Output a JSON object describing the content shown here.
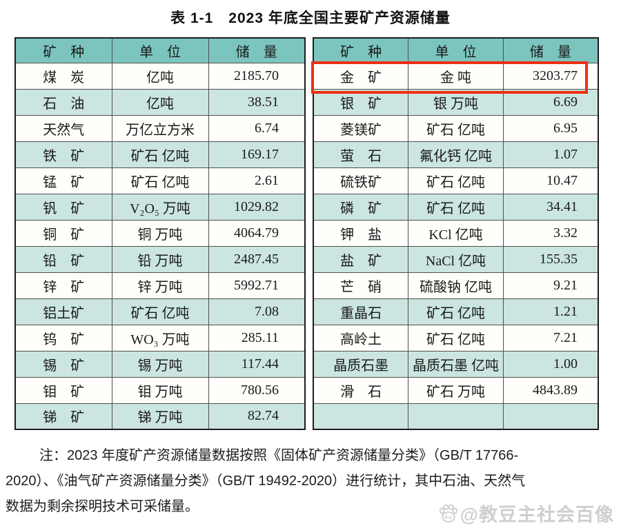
{
  "title": "表 1-1　2023 年底全国主要矿产资源储量",
  "tables": {
    "left": {
      "headers": [
        "矿　种",
        "单　位",
        "储　量"
      ],
      "rows": [
        {
          "mineral": "煤　炭",
          "unit": "亿吨",
          "reserve": "2185.70"
        },
        {
          "mineral": "石　油",
          "unit": "亿吨",
          "reserve": "38.51"
        },
        {
          "mineral": "天然气",
          "unit": "万亿立方米",
          "reserve": "6.74"
        },
        {
          "mineral": "铁　矿",
          "unit": "矿石 亿吨",
          "reserve": "169.17"
        },
        {
          "mineral": "锰　矿",
          "unit": "矿石 亿吨",
          "reserve": "2.61"
        },
        {
          "mineral": "钒　矿",
          "unit": "V₂O₅ 万吨",
          "reserve": "1029.82"
        },
        {
          "mineral": "铜　矿",
          "unit": "铜 万吨",
          "reserve": "4064.79"
        },
        {
          "mineral": "铅　矿",
          "unit": "铅 万吨",
          "reserve": "2487.45"
        },
        {
          "mineral": "锌　矿",
          "unit": "锌 万吨",
          "reserve": "5992.71"
        },
        {
          "mineral": "铝土矿",
          "unit": "矿石 亿吨",
          "reserve": "7.08"
        },
        {
          "mineral": "钨　矿",
          "unit": "WO₃ 万吨",
          "reserve": "285.11"
        },
        {
          "mineral": "锡　矿",
          "unit": "锡 万吨",
          "reserve": "117.44"
        },
        {
          "mineral": "钼　矿",
          "unit": "钼 万吨",
          "reserve": "780.56"
        },
        {
          "mineral": "锑　矿",
          "unit": "锑 万吨",
          "reserve": "82.74"
        }
      ]
    },
    "right": {
      "headers": [
        "矿　种",
        "单　位",
        "储　量"
      ],
      "highlight_row_index": 0,
      "rows": [
        {
          "mineral": "金　矿",
          "unit": "金 吨",
          "reserve": "3203.77"
        },
        {
          "mineral": "银　矿",
          "unit": "银 万吨",
          "reserve": "6.69"
        },
        {
          "mineral": "菱镁矿",
          "unit": "矿石 亿吨",
          "reserve": "6.95"
        },
        {
          "mineral": "萤　石",
          "unit": "氟化钙 亿吨",
          "reserve": "1.07"
        },
        {
          "mineral": "硫铁矿",
          "unit": "矿石 亿吨",
          "reserve": "10.47"
        },
        {
          "mineral": "磷　矿",
          "unit": "矿石 亿吨",
          "reserve": "34.41"
        },
        {
          "mineral": "钾　盐",
          "unit": "KCl 亿吨",
          "reserve": "3.32"
        },
        {
          "mineral": "盐　矿",
          "unit": "NaCl 亿吨",
          "reserve": "155.35"
        },
        {
          "mineral": "芒　硝",
          "unit": "硫酸钠 亿吨",
          "reserve": "9.21"
        },
        {
          "mineral": "重晶石",
          "unit": "矿石 亿吨",
          "reserve": "1.21"
        },
        {
          "mineral": "高岭土",
          "unit": "矿石 亿吨",
          "reserve": "7.21"
        },
        {
          "mineral": "晶质石墨",
          "unit": "晶质石墨 亿吨",
          "reserve": "1.00"
        },
        {
          "mineral": "滑　石",
          "unit": "矿石 万吨",
          "reserve": "4843.89"
        },
        {
          "mineral": "",
          "unit": "",
          "reserve": ""
        }
      ]
    }
  },
  "note": {
    "lines": [
      "注：2023 年度矿产资源储量数据按照《固体矿产资源储量分类》（GB/T 17766-",
      "2020）、《油气矿产资源储量分类》（GB/T 19492-2020）进行统计，其中石油、天然气",
      "数据为剩余探明技术可采储量。"
    ]
  },
  "watermark": {
    "icon": "baidu-paw-icon",
    "text": "@教豆主社会百像"
  },
  "colors": {
    "header_bg": "#7cc5be",
    "row_alt_bg": "#cbe5e0",
    "row_bg": "#fffefa",
    "highlight_border": "#ee2f12"
  }
}
